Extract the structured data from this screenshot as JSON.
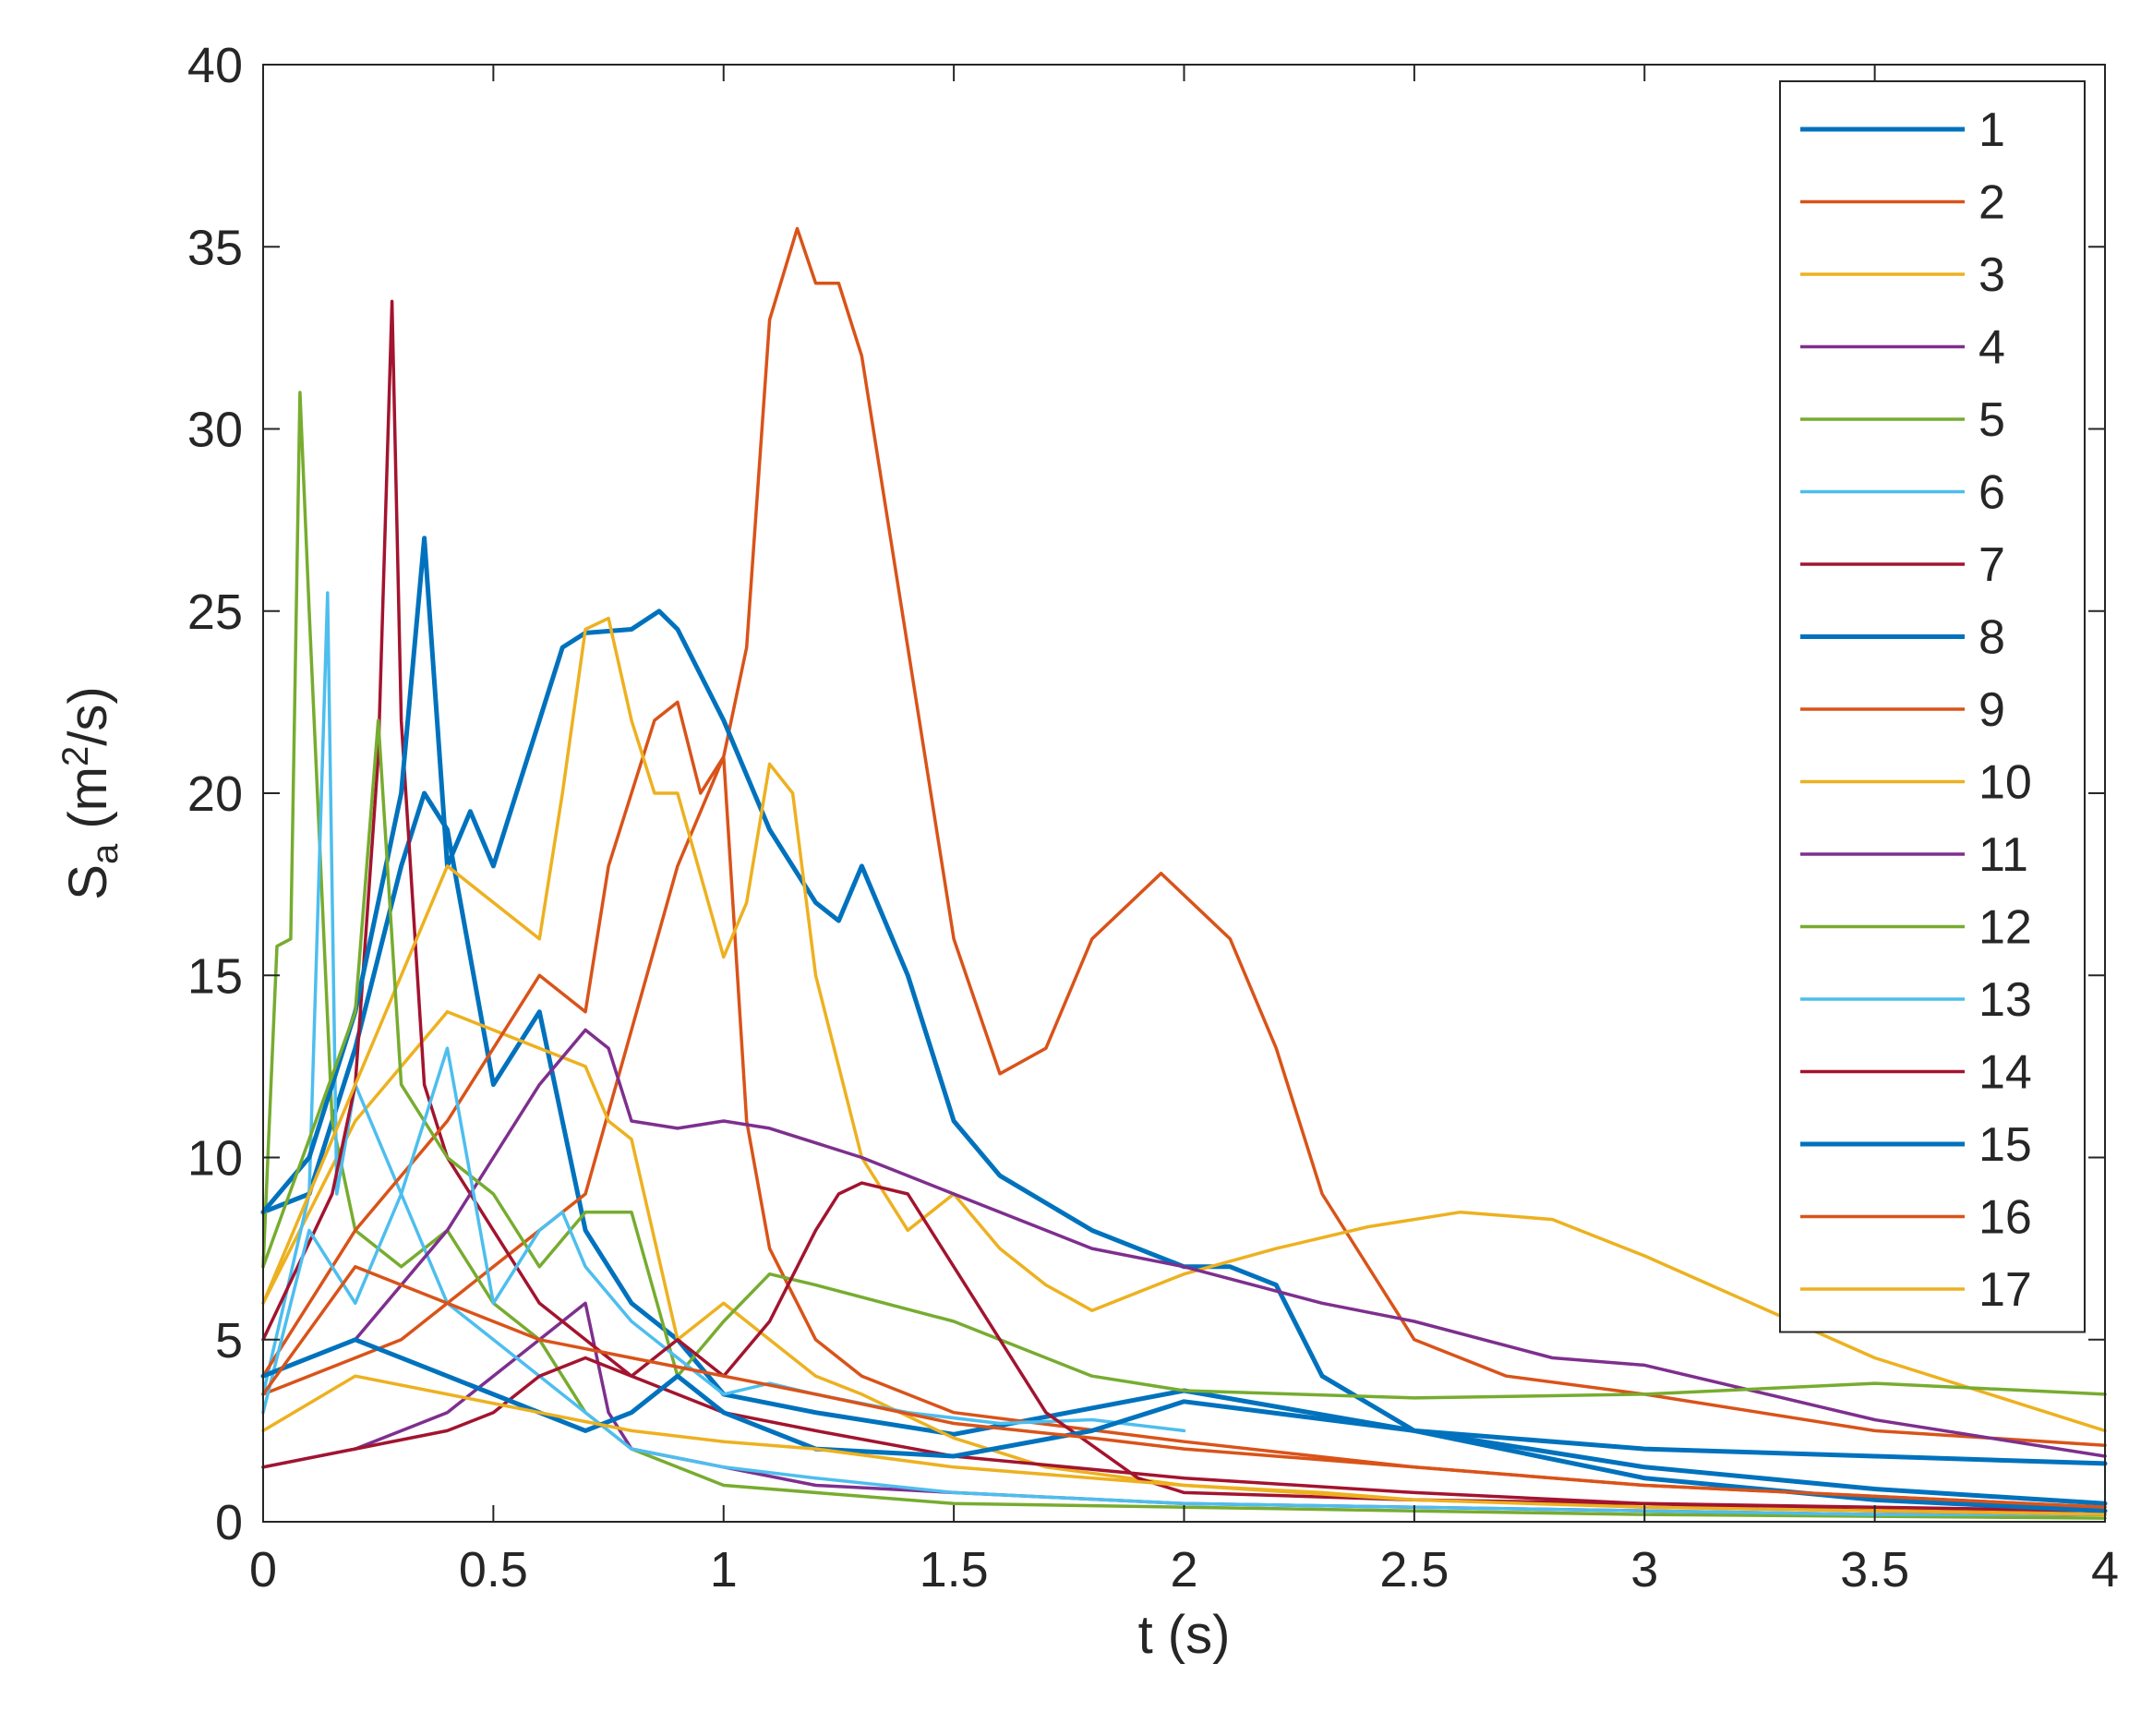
{
  "chart_data": {
    "type": "line",
    "title": "",
    "xlabel": "t (s)",
    "ylabel_main": "S",
    "ylabel_sub": "a",
    "ylabel_rest_open": " (m",
    "ylabel_sup": "2",
    "ylabel_rest_close": "/s)",
    "xlim": [
      0,
      4
    ],
    "ylim": [
      0,
      40
    ],
    "xticks": [
      0,
      0.5,
      1,
      1.5,
      2,
      2.5,
      3,
      3.5,
      4
    ],
    "xtick_labels": [
      "0",
      "0.5",
      "1",
      "1.5",
      "2",
      "2.5",
      "3",
      "3.5",
      "4"
    ],
    "yticks": [
      0,
      5,
      10,
      15,
      20,
      25,
      30,
      35,
      40
    ],
    "ytick_labels": [
      "0",
      "5",
      "10",
      "15",
      "20",
      "25",
      "30",
      "35",
      "40"
    ],
    "grid": false,
    "legend_position": "top-right",
    "series": [
      {
        "name": "1",
        "color": "#0072BD",
        "x": [
          0,
          0.1,
          0.2,
          0.3,
          0.35,
          0.4,
          0.5,
          0.6,
          0.7,
          0.8,
          0.9,
          1.0,
          1.2,
          1.5,
          2.0,
          2.5,
          3.0,
          3.5,
          4.0
        ],
        "y": [
          8.5,
          9,
          13,
          18,
          20,
          19,
          12,
          14,
          8,
          6,
          5,
          3.5,
          3,
          2.4,
          3.6,
          2.5,
          2.0,
          1.8,
          1.6
        ]
      },
      {
        "name": "2",
        "color": "#D95319",
        "x": [
          0,
          0.3,
          0.5,
          0.7,
          0.9,
          1.0,
          1.05,
          1.1,
          1.16,
          1.2,
          1.25,
          1.3,
          1.4,
          1.5,
          1.6,
          1.7,
          1.8,
          1.95,
          2.1,
          2.2,
          2.3,
          2.5,
          2.7,
          3.0,
          3.5,
          4.0
        ],
        "y": [
          3.5,
          5,
          7,
          9,
          18,
          21,
          24,
          33,
          35.5,
          34,
          34,
          32,
          24,
          16,
          12.3,
          13,
          16,
          17.8,
          16,
          13,
          9,
          5,
          4,
          3.5,
          2.5,
          2.1
        ]
      },
      {
        "name": "3",
        "color": "#EDB120",
        "x": [
          0,
          0.2,
          0.4,
          0.6,
          0.7,
          0.75,
          0.8,
          0.9,
          1.0,
          1.1,
          1.2,
          1.3,
          1.5,
          1.7,
          2.0,
          2.3,
          2.5,
          2.8,
          3.0,
          3.5,
          4.0
        ],
        "y": [
          6,
          11,
          14,
          13,
          12.5,
          11,
          10.5,
          5,
          6,
          5,
          4,
          3.5,
          2.3,
          1.5,
          1.0,
          0.8,
          0.6,
          0.5,
          0.4,
          0.35,
          0.3
        ]
      },
      {
        "name": "4",
        "color": "#7E2F8E",
        "x": [
          0,
          0.2,
          0.4,
          0.6,
          0.7,
          0.75,
          0.8,
          1.0,
          1.2,
          1.5,
          2.0,
          2.5,
          3.0,
          3.5,
          4.0
        ],
        "y": [
          1.5,
          2,
          3,
          5,
          6,
          3,
          2,
          1.5,
          1.0,
          0.8,
          0.5,
          0.4,
          0.3,
          0.2,
          0.2
        ]
      },
      {
        "name": "5",
        "color": "#77AC30",
        "x": [
          0,
          0.03,
          0.06,
          0.08,
          0.1,
          0.15,
          0.2,
          0.3,
          0.4,
          0.5,
          0.6,
          0.7,
          0.8,
          1.0,
          1.5,
          2.0,
          2.5,
          3.0,
          3.5,
          4.0
        ],
        "y": [
          7,
          15.8,
          16,
          31,
          25,
          11,
          8,
          7,
          8,
          6,
          5,
          3,
          2,
          1,
          0.5,
          0.4,
          0.3,
          0.2,
          0.15,
          0.1
        ]
      },
      {
        "name": "6",
        "color": "#4DBEEE",
        "x": [
          0,
          0.1,
          0.14,
          0.16,
          0.2,
          0.3,
          0.4,
          0.5,
          0.6,
          0.7,
          0.8,
          1.0,
          1.2,
          1.5,
          2.0,
          2.5,
          3.0,
          3.5,
          4.0
        ],
        "y": [
          3.5,
          9,
          25.5,
          9,
          12,
          9,
          6,
          5,
          4,
          3,
          2,
          1.5,
          1.2,
          0.8,
          0.5,
          0.4,
          0.3,
          0.2,
          0.2
        ]
      },
      {
        "name": "7",
        "color": "#A2142F",
        "x": [
          0,
          0.15,
          0.2,
          0.25,
          0.28,
          0.3,
          0.35,
          0.4,
          0.5,
          0.6,
          0.7,
          0.8,
          1.0,
          1.2,
          1.5,
          2.0,
          2.5,
          3.0,
          3.5,
          4.0
        ],
        "y": [
          5,
          9,
          12,
          21,
          33.5,
          22,
          12,
          10,
          8,
          6,
          5,
          4,
          3,
          2.5,
          1.8,
          1.2,
          0.8,
          0.5,
          0.3,
          0.2
        ]
      },
      {
        "name": "8",
        "color": "#0072BD",
        "x": [
          0,
          0.1,
          0.2,
          0.3,
          0.35,
          0.4,
          0.45,
          0.5,
          0.55,
          0.6,
          0.65,
          0.7,
          0.8,
          0.86,
          0.9,
          1.0,
          1.1,
          1.2,
          1.25,
          1.3,
          1.4,
          1.5,
          1.6,
          1.8,
          2.0,
          2.1,
          2.2,
          2.3,
          2.5,
          3.0,
          3.5,
          4.0
        ],
        "y": [
          8.5,
          10,
          14,
          20,
          27,
          18,
          19.5,
          18,
          20,
          22,
          24,
          24.4,
          24.5,
          25,
          24.5,
          22,
          19,
          17,
          16.5,
          18,
          15,
          11,
          9.5,
          8,
          7,
          7,
          6.5,
          4,
          2.5,
          1.5,
          0.9,
          0.5
        ]
      },
      {
        "name": "9",
        "color": "#D95319",
        "x": [
          0,
          0.2,
          0.4,
          0.5,
          0.6,
          0.7,
          0.75,
          0.8,
          0.85,
          0.9,
          0.95,
          1.0,
          1.05,
          1.1,
          1.2,
          1.3,
          1.5,
          2.0,
          2.5,
          3.0,
          3.5,
          4.0
        ],
        "y": [
          4,
          8,
          11,
          13,
          15,
          14,
          18,
          20,
          22,
          22.5,
          20,
          21,
          11,
          7.5,
          5,
          4,
          3,
          2.2,
          1.5,
          1.0,
          0.7,
          0.4
        ]
      },
      {
        "name": "10",
        "color": "#EDB120",
        "x": [
          0,
          0.2,
          0.4,
          0.6,
          0.65,
          0.7,
          0.75,
          0.8,
          0.85,
          0.9,
          1.0,
          1.05,
          1.1,
          1.15,
          1.2,
          1.3,
          1.4,
          1.5,
          1.6,
          1.7,
          1.8,
          2.0,
          2.2,
          2.4,
          2.6,
          2.8,
          3.0,
          3.5,
          4.0
        ],
        "y": [
          6,
          12,
          18,
          16,
          20,
          24.5,
          24.8,
          22,
          20,
          20,
          15.5,
          17,
          20.8,
          20,
          15,
          10,
          8,
          9,
          7.5,
          6.5,
          5.8,
          6.8,
          7.5,
          8.1,
          8.5,
          8.3,
          7.3,
          4.5,
          2.5
        ]
      },
      {
        "name": "11",
        "color": "#7E2F8E",
        "x": [
          0,
          0.2,
          0.4,
          0.5,
          0.6,
          0.7,
          0.75,
          0.8,
          0.9,
          1.0,
          1.1,
          1.3,
          1.5,
          1.8,
          2.0,
          2.3,
          2.5,
          2.8,
          3.0,
          3.5,
          4.0
        ],
        "y": [
          4,
          5,
          8,
          10,
          12,
          13.5,
          13,
          11,
          10.8,
          11,
          10.8,
          10,
          9,
          7.5,
          7,
          6,
          5.5,
          4.5,
          4.3,
          2.8,
          1.8
        ]
      },
      {
        "name": "12",
        "color": "#77AC30",
        "x": [
          0,
          0.2,
          0.25,
          0.3,
          0.4,
          0.5,
          0.6,
          0.7,
          0.8,
          0.9,
          1.0,
          1.1,
          1.2,
          1.5,
          1.8,
          2.0,
          2.5,
          3.0,
          3.5,
          4.0
        ],
        "y": [
          7,
          14,
          22,
          12,
          10,
          9,
          7,
          8.5,
          8.5,
          4,
          5.5,
          6.8,
          6.5,
          5.5,
          4,
          3.6,
          3.4,
          3.5,
          3.8,
          3.5
        ]
      },
      {
        "name": "13",
        "color": "#4DBEEE",
        "x": [
          0,
          0.1,
          0.2,
          0.3,
          0.4,
          0.5,
          0.6,
          0.65,
          0.7,
          0.8,
          0.9,
          1.0,
          1.1,
          1.2,
          1.4,
          1.6,
          1.8,
          2.0
        ],
        "y": [
          3,
          8,
          6,
          9,
          13,
          6,
          8,
          8.5,
          7,
          5.5,
          4.5,
          3.5,
          3.8,
          3.5,
          3.0,
          2.7,
          2.8,
          2.5
        ]
      },
      {
        "name": "14",
        "color": "#A2142F",
        "x": [
          0,
          0.2,
          0.4,
          0.5,
          0.6,
          0.7,
          0.8,
          0.9,
          1.0,
          1.1,
          1.2,
          1.25,
          1.3,
          1.4,
          1.5,
          1.7,
          1.9,
          2.0,
          2.5,
          3.0,
          3.5,
          4.0
        ],
        "y": [
          1.5,
          2,
          2.5,
          3,
          4,
          4.5,
          4,
          5,
          4,
          5.5,
          8,
          9,
          9.3,
          9,
          7,
          3,
          1.2,
          0.8,
          0.6,
          0.5,
          0.4,
          0.3
        ]
      },
      {
        "name": "15",
        "color": "#0072BD",
        "x": [
          0,
          0.2,
          0.4,
          0.6,
          0.7,
          0.8,
          0.9,
          1.0,
          1.2,
          1.5,
          1.8,
          2.0,
          2.5,
          3.0,
          3.5,
          4.0
        ],
        "y": [
          4,
          5,
          4,
          3,
          2.5,
          3,
          4,
          3,
          2,
          1.8,
          2.5,
          3.3,
          2.5,
          1.2,
          0.6,
          0.3
        ]
      },
      {
        "name": "16",
        "color": "#D95319",
        "x": [
          0,
          0.2,
          0.4,
          0.6,
          0.8,
          1.0,
          1.2,
          1.5,
          1.8,
          2.0,
          2.5,
          3.0,
          3.5,
          4.0
        ],
        "y": [
          3.5,
          7,
          6,
          5,
          4.5,
          4,
          3.5,
          2.7,
          2.3,
          2.0,
          1.5,
          1.0,
          0.7,
          0.4
        ]
      },
      {
        "name": "17",
        "color": "#EDB120",
        "x": [
          0,
          0.2,
          0.4,
          0.6,
          0.8,
          1.0,
          1.2,
          1.5,
          2.0,
          2.5,
          3.0,
          3.5,
          4.0
        ],
        "y": [
          2.5,
          4,
          3.5,
          3,
          2.5,
          2.2,
          2.0,
          1.5,
          1.0,
          0.6,
          0.4,
          0.3,
          0.2
        ]
      }
    ]
  }
}
